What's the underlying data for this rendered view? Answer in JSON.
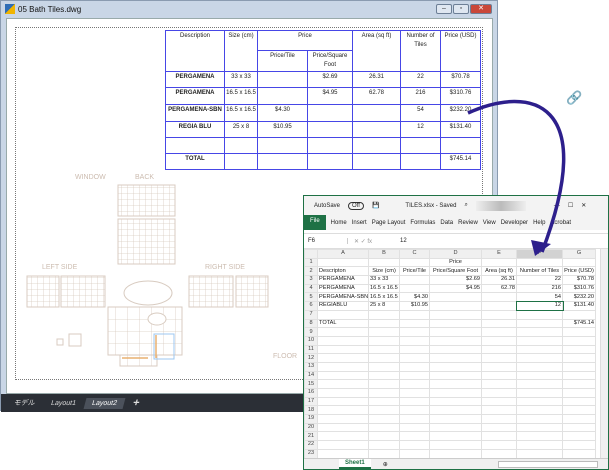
{
  "cad": {
    "title": "05 Bath Tiles.dwg",
    "table": {
      "headers": {
        "description": "Description",
        "size": "Size (cm)",
        "price": "Price",
        "price_tile": "Price/Tile",
        "price_sqft": "Price/Square Foot",
        "area": "Area (sq ft)",
        "num_tiles": "Number of Tiles",
        "price_usd": "Price (USD)"
      },
      "rows": [
        [
          "PERGAMENA",
          "33 x 33",
          "",
          "$2.69",
          "26.31",
          "22",
          "$70.78"
        ],
        [
          "PERGAMENA",
          "16.5 x 16.5",
          "",
          "$4.95",
          "62.78",
          "216",
          "$310.76"
        ],
        [
          "PERGAMENA-SBN",
          "16.5 x 16.5",
          "$4.30",
          "",
          "",
          "54",
          "$232.20"
        ],
        [
          "REGIA BLU",
          "25 x 8",
          "$10.95",
          "",
          "",
          "12",
          "$131.40"
        ],
        [
          "",
          "",
          "",
          "",
          "",
          "",
          ""
        ],
        [
          "TOTAL",
          "",
          "",
          "",
          "",
          "",
          "$745.14"
        ]
      ]
    },
    "labels": {
      "window": "WINDOW",
      "back": "BACK",
      "left_side": "LEFT SIDE",
      "right_side": "RIGHT SIDE",
      "floor": "FLOOR"
    },
    "tabs": [
      "モデル",
      "Layout1",
      "Layout2"
    ],
    "active_tab": "Layout2",
    "add_tab": "+"
  },
  "excel": {
    "autosave": "AutoSave",
    "autosave_state": "Off",
    "filename": "TILES.xlsx - Saved",
    "ribbon": [
      "File",
      "Home",
      "Insert",
      "Page Layout",
      "Formulas",
      "Data",
      "Review",
      "View",
      "Developer",
      "Help",
      "Acrobat"
    ],
    "name_box": "F6",
    "formula": "12",
    "columns": [
      "A",
      "B",
      "C",
      "D",
      "E",
      "F",
      "G"
    ],
    "rows": [
      [
        "",
        "",
        "",
        "Price",
        "",
        "",
        ""
      ],
      [
        "Descripton",
        "Size (cm)",
        "Price/Tile",
        "Price/Square Foot",
        "Area (sq ft)",
        "Number of Tiles",
        "Price (USD)"
      ],
      [
        "PERGAMENA",
        "33 x 33",
        "",
        "$2.69",
        "26.31",
        "22",
        "$70.78"
      ],
      [
        "PERGAMENA",
        "16.5 x 16.5",
        "",
        "$4.95",
        "62.78",
        "216",
        "$310.76"
      ],
      [
        "PERGAMENA-SBN",
        "16.5 x 16.5",
        "$4.30",
        "",
        "",
        "54",
        "$232.20"
      ],
      [
        "REGIABLU",
        "25 x 8",
        "$10.95",
        "",
        "",
        "12",
        "$131.40"
      ],
      [
        "",
        "",
        "",
        "",
        "",
        "",
        ""
      ],
      [
        "TOTAL",
        "",
        "",
        "",
        "",
        "",
        "$745.14"
      ]
    ],
    "row_count": 24,
    "sheet": "Sheet1"
  },
  "colors": {
    "table_border": "#4646e6",
    "excel_green": "#1e7145",
    "arrow": "#2d1f8c",
    "tile_lines": "#d8cbc0"
  }
}
